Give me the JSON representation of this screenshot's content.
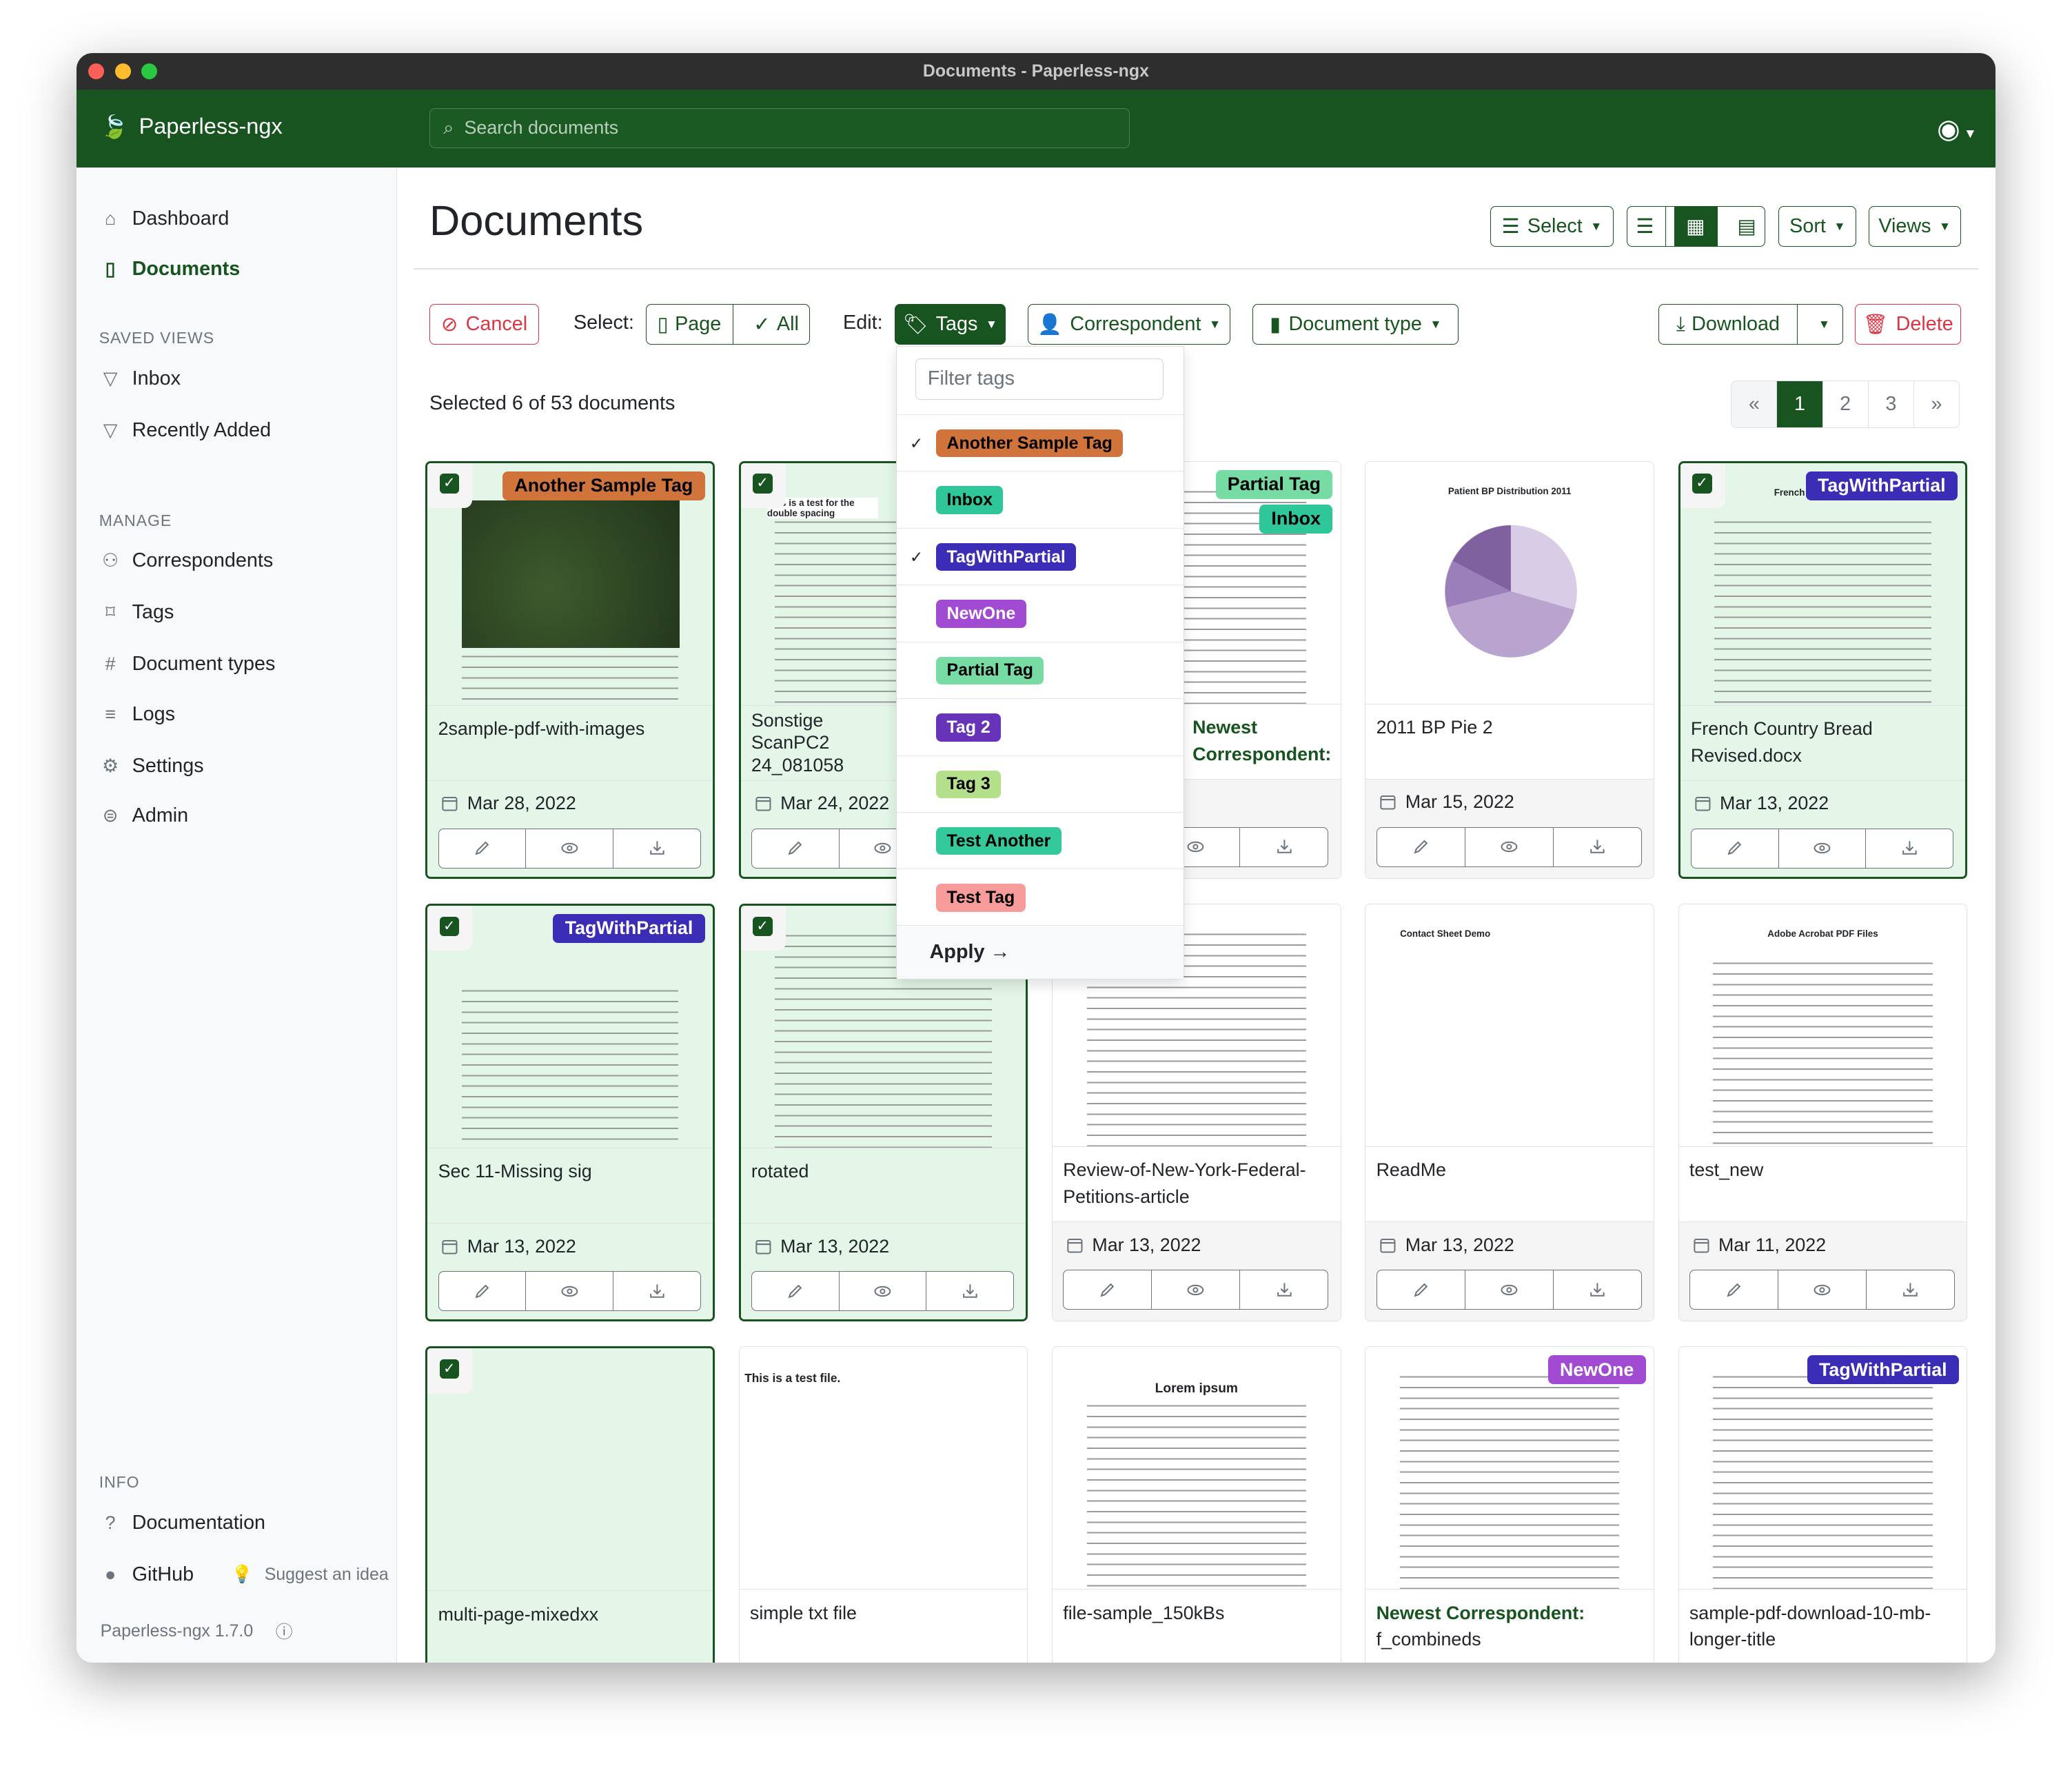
{
  "window": {
    "title": "Documents - Paperless-ngx"
  },
  "header": {
    "app_name": "Paperless-ngx",
    "search_placeholder": "Search documents"
  },
  "sidebar": {
    "nav": [
      {
        "label": "Dashboard",
        "icon": "house-icon"
      },
      {
        "label": "Documents",
        "icon": "files-icon",
        "active": true
      }
    ],
    "saved_views_heading": "SAVED VIEWS",
    "saved_views": [
      {
        "label": "Inbox"
      },
      {
        "label": "Recently Added"
      }
    ],
    "manage_heading": "MANAGE",
    "manage": [
      {
        "label": "Correspondents",
        "icon": "person-icon"
      },
      {
        "label": "Tags",
        "icon": "tags-icon"
      },
      {
        "label": "Document types",
        "icon": "hash-icon"
      },
      {
        "label": "Logs",
        "icon": "text-icon"
      },
      {
        "label": "Settings",
        "icon": "gear-icon"
      },
      {
        "label": "Admin",
        "icon": "toggles-icon"
      }
    ],
    "info_heading": "INFO",
    "documentation": "Documentation",
    "github": "GitHub",
    "suggest": "Suggest an idea",
    "version": "Paperless-ngx 1.7.0"
  },
  "page": {
    "title": "Documents",
    "select": "Select",
    "sort": "Sort",
    "views": "Views"
  },
  "bulk": {
    "cancel": "Cancel",
    "select_label": "Select:",
    "page": "Page",
    "all": "All",
    "edit_label": "Edit:",
    "tags": "Tags",
    "correspondent": "Correspondent",
    "document_type": "Document type",
    "download": "Download",
    "delete": "Delete",
    "selected_text": "Selected 6 of 53 documents"
  },
  "pagination": {
    "prev": "«",
    "pages": [
      "1",
      "2",
      "3"
    ],
    "current": "1",
    "next": "»"
  },
  "tag_dropdown": {
    "filter_placeholder": "Filter tags",
    "apply": "Apply →",
    "items": [
      {
        "label": "Another Sample Tag",
        "color": "#d0743c",
        "text": "#000",
        "checked": true
      },
      {
        "label": "Inbox",
        "color": "#2fc69a",
        "text": "#000",
        "checked": false
      },
      {
        "label": "TagWithPartial",
        "color": "#3b2db5",
        "text": "#fff",
        "checked": true
      },
      {
        "label": "NewOne",
        "color": "#a14bd3",
        "text": "#fff",
        "checked": false
      },
      {
        "label": "Partial Tag",
        "color": "#76dca4",
        "text": "#000",
        "checked": false
      },
      {
        "label": "Tag 2",
        "color": "#6633b9",
        "text": "#fff",
        "checked": false
      },
      {
        "label": "Tag 3",
        "color": "#b4e08b",
        "text": "#000",
        "checked": false
      },
      {
        "label": "Test Another",
        "color": "#33c99b",
        "text": "#000",
        "checked": false
      },
      {
        "label": "Test Tag",
        "color": "#f89c9b",
        "text": "#000",
        "checked": false
      }
    ]
  },
  "documents": [
    {
      "title": "2sample-pdf-with-images",
      "date": "Mar 28, 2022",
      "selected": true,
      "tags": [
        "Another Sample Tag"
      ],
      "preview": "map"
    },
    {
      "title": "Sonstige ScanPC2 24_081058",
      "date": "Mar 24, 2022",
      "selected": true,
      "tags": [],
      "preview": "lines",
      "preview_text": "This is a test for the double spacing"
    },
    {
      "title": "Newest Correspondent:",
      "title_green": true,
      "date": "",
      "selected": false,
      "tags": [
        "Partial Tag",
        "Inbox"
      ],
      "preview": "doc"
    },
    {
      "title": "2011 BP Pie 2",
      "date": "Mar 15, 2022",
      "selected": false,
      "tags": [],
      "preview": "pie",
      "preview_text": "Patient BP Distribution 2011"
    },
    {
      "title": "French Country Bread Revised.docx",
      "date": "Mar 13, 2022",
      "selected": true,
      "tags": [
        "TagWithPartial"
      ],
      "preview": "doc",
      "preview_text": "French Country Bread"
    },
    {
      "title": "Sec 11-Missing sig",
      "date": "Mar 13, 2022",
      "selected": true,
      "tags": [
        "TagWithPartial"
      ],
      "preview": "form"
    },
    {
      "title": "rotated",
      "date": "Mar 13, 2022",
      "selected": true,
      "tags": [],
      "preview": "lines"
    },
    {
      "title": "Review-of-New-York-Federal-Petitions-article",
      "date": "Mar 13, 2022",
      "selected": false,
      "tags": [],
      "preview": "doc"
    },
    {
      "title": "ReadMe",
      "date": "Mar 13, 2022",
      "selected": false,
      "tags": [],
      "preview": "sparse",
      "preview_text": "Contact Sheet Demo"
    },
    {
      "title": "test_new",
      "date": "Mar 11, 2022",
      "selected": false,
      "tags": [],
      "preview": "doc",
      "preview_text": "Adobe Acrobat PDF Files"
    },
    {
      "title": "multi-page-mixedxx",
      "date": "",
      "selected": true,
      "tags": [],
      "preview": "blank"
    },
    {
      "title": "simple txt file",
      "date": "",
      "selected": false,
      "tags": [],
      "preview": "blank",
      "preview_text": "This is a test file."
    },
    {
      "title": "file-sample_150kBs",
      "date": "",
      "selected": false,
      "tags": [],
      "preview": "doc",
      "preview_text": "Lorem ipsum"
    },
    {
      "title": "Newest Correspondent: f_combineds",
      "title_green_prefix": "Newest Correspondent:",
      "title_rest": "f_combineds",
      "date": "",
      "selected": false,
      "tags": [
        "NewOne"
      ],
      "preview": "doc"
    },
    {
      "title": "sample-pdf-download-10-mb-longer-title",
      "date": "",
      "selected": false,
      "tags": [
        "TagWithPartial"
      ],
      "preview": "doc"
    }
  ],
  "colors": {
    "primary": "#17541f",
    "danger": "#dc3545"
  }
}
